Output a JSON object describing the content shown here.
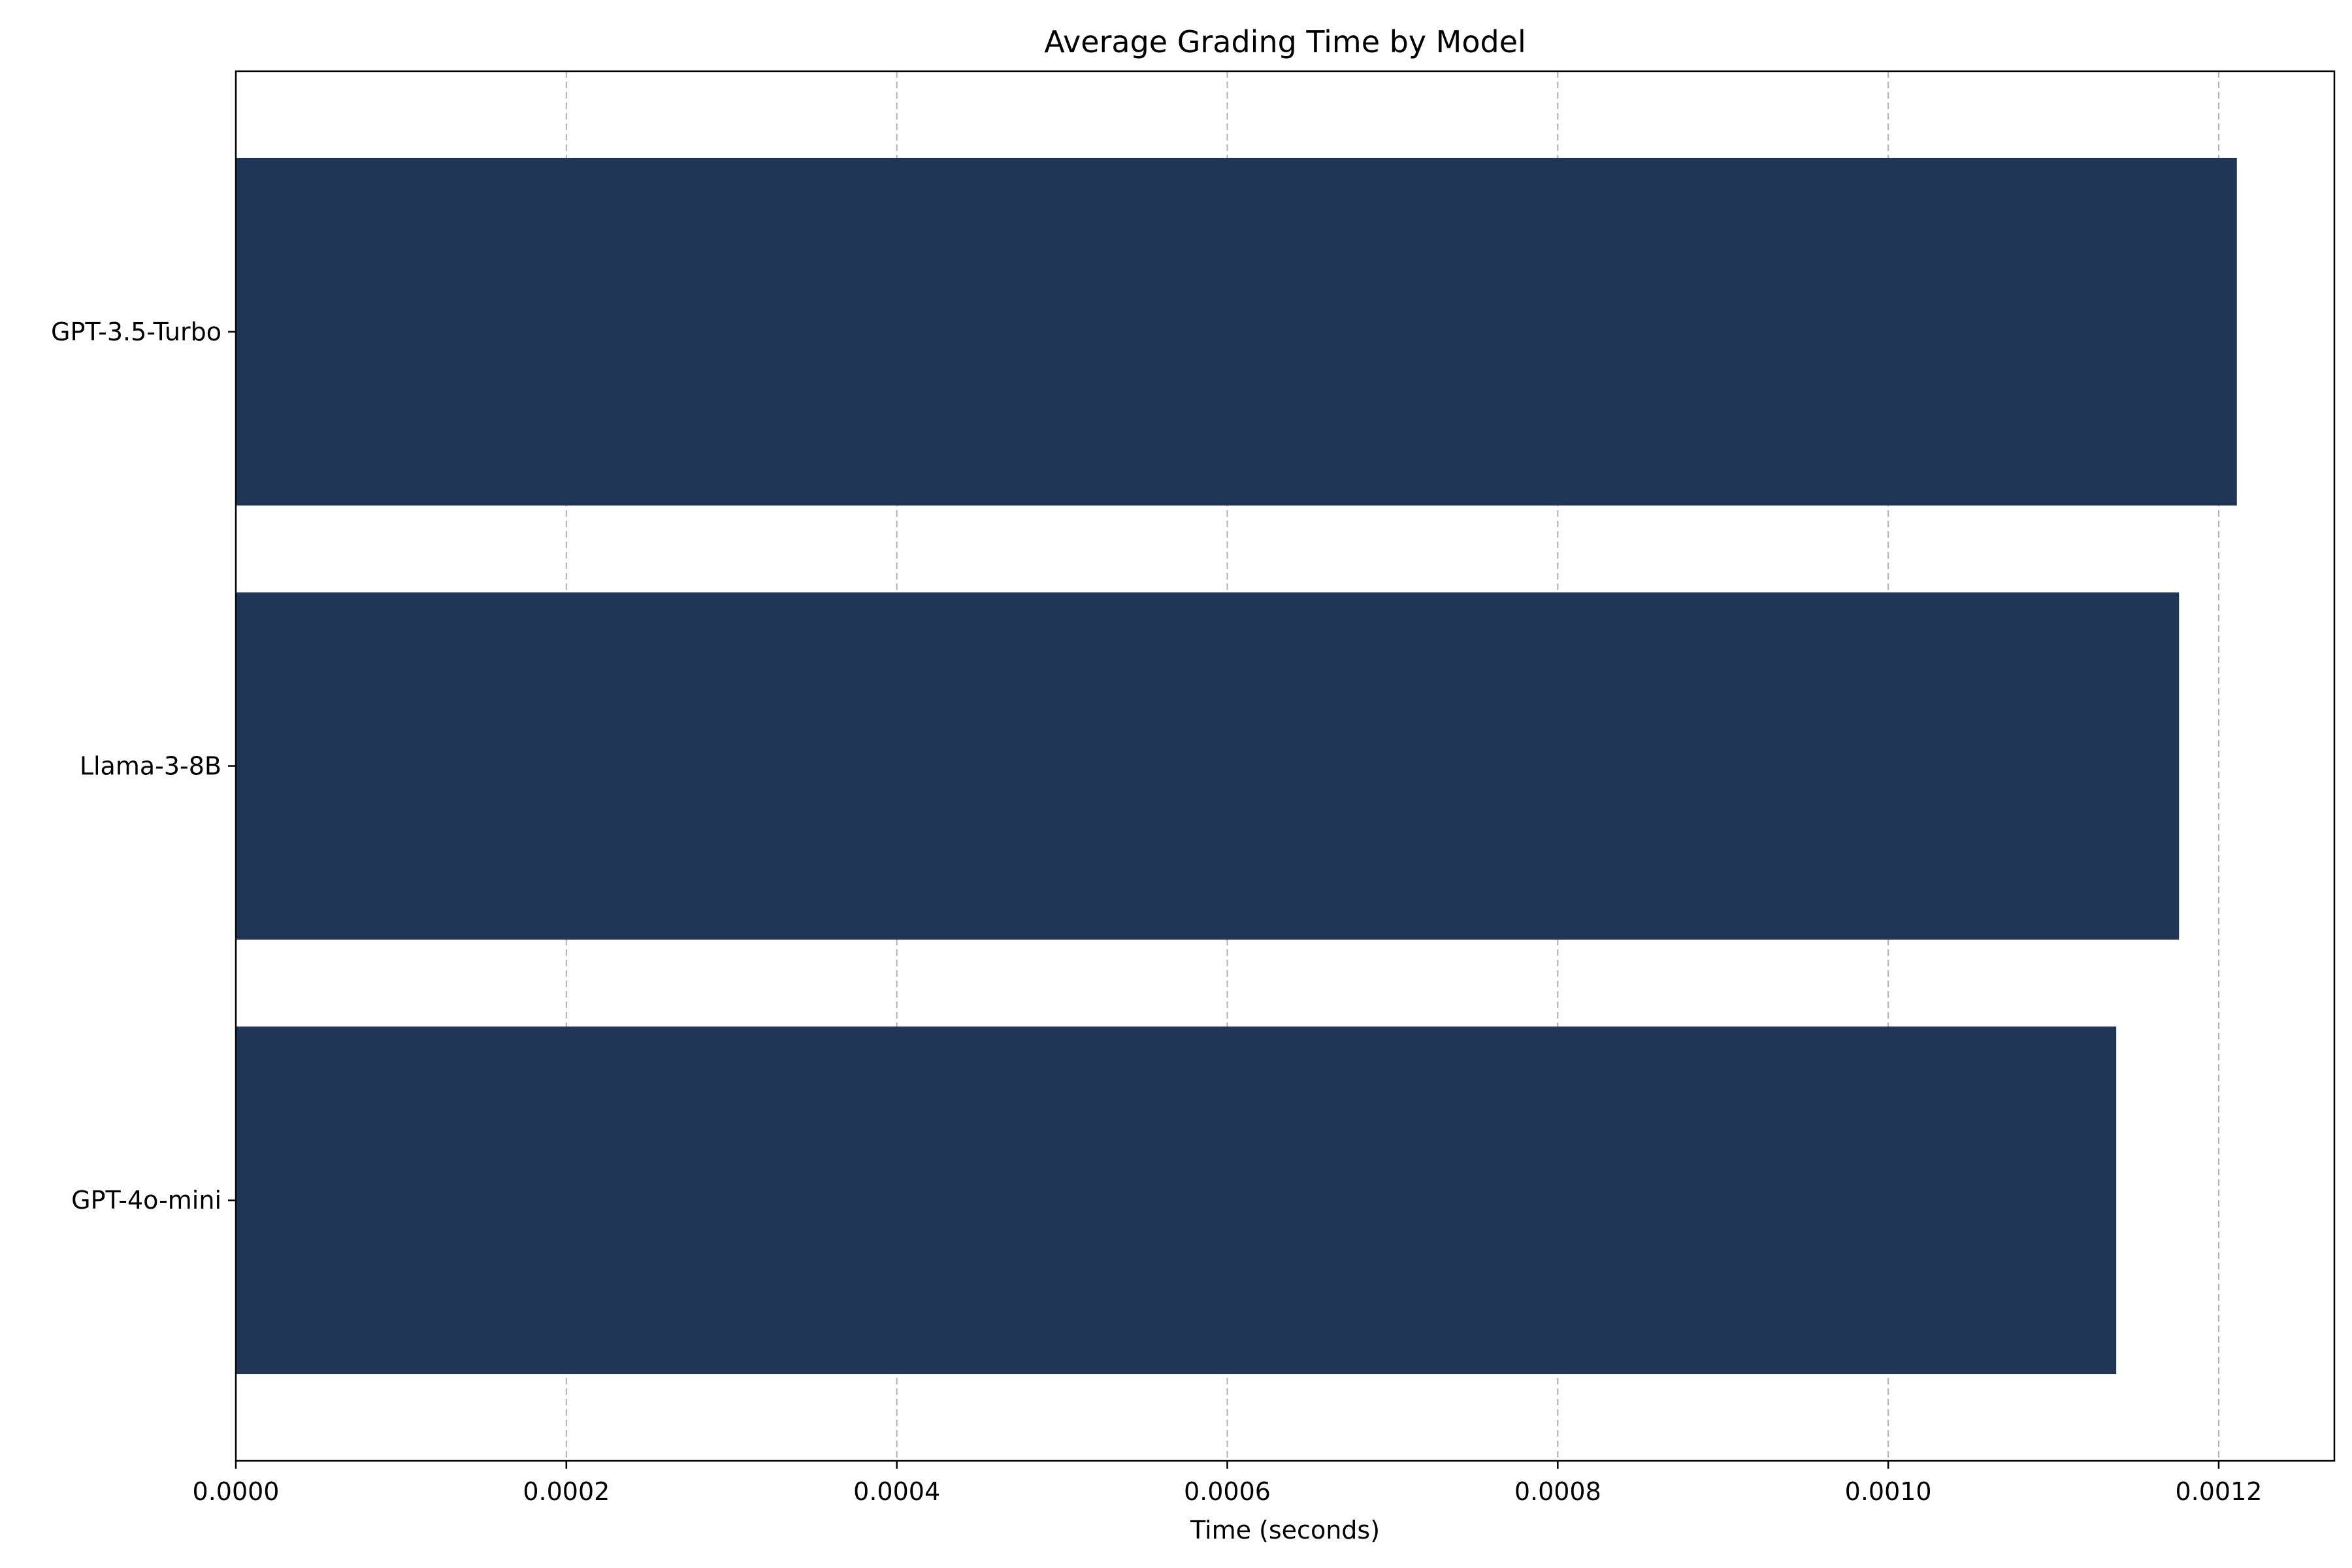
{
  "chart_data": {
    "type": "bar",
    "orientation": "horizontal",
    "title": "Average Grading Time by Model",
    "xlabel": "Time (seconds)",
    "ylabel": "",
    "categories": [
      "GPT-3.5-Turbo",
      "Llama-3-8B",
      "GPT-4o-mini"
    ],
    "values": [
      0.001211,
      0.001176,
      0.001138
    ],
    "xlim": [
      0,
      0.00127
    ],
    "xticks": [
      "0.0000",
      "0.0002",
      "0.0004",
      "0.0006",
      "0.0008",
      "0.0010",
      "0.0012"
    ],
    "xtick_values": [
      0,
      0.0002,
      0.0004,
      0.0006,
      0.0008,
      0.001,
      0.0012
    ],
    "grid": "x-dashed",
    "legend": "none",
    "bar_color": "#1f3657"
  }
}
